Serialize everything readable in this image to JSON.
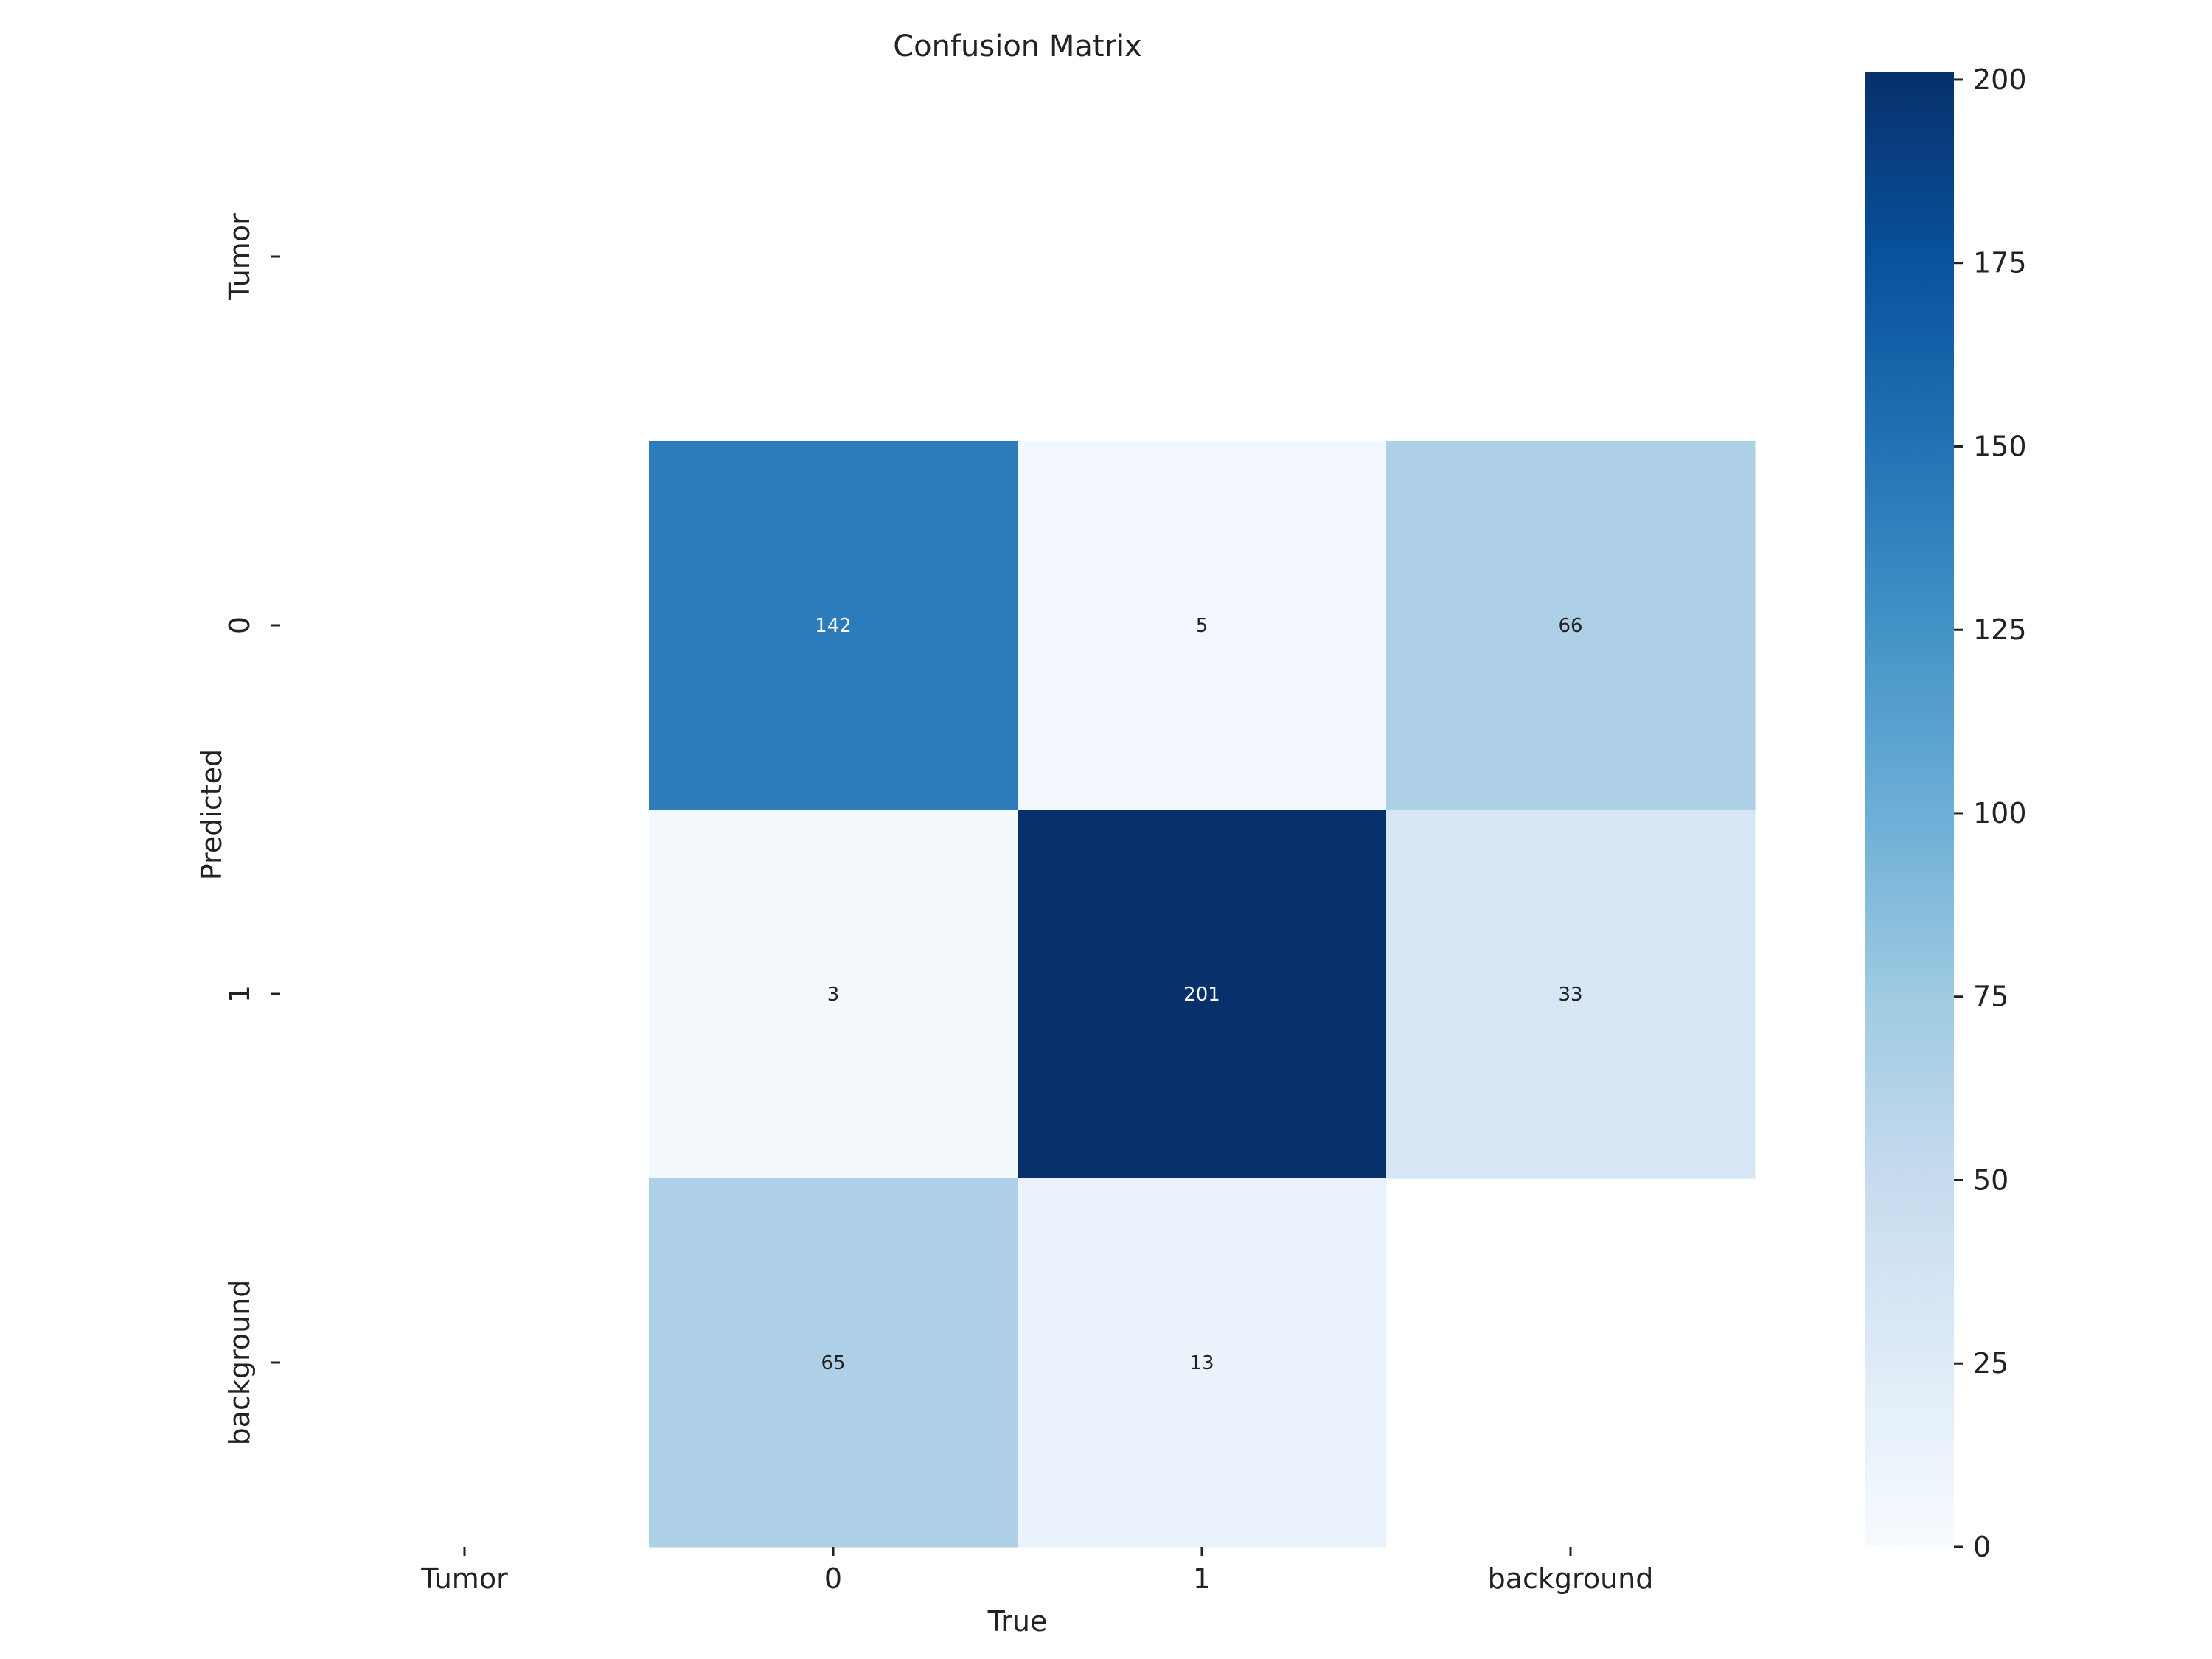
{
  "chart_data": {
    "type": "heatmap",
    "title": "Confusion Matrix",
    "xlabel": "True",
    "ylabel": "Predicted",
    "x_categories": [
      "Tumor",
      "0",
      "1",
      "background"
    ],
    "y_categories": [
      "Tumor",
      "0",
      "1",
      "background"
    ],
    "matrix": [
      [
        null,
        null,
        null,
        null
      ],
      [
        null,
        142,
        5,
        66
      ],
      [
        null,
        3,
        201,
        33
      ],
      [
        null,
        65,
        13,
        null
      ]
    ],
    "colorbar": {
      "range": [
        0,
        201
      ],
      "ticks": [
        "0",
        "25",
        "50",
        "75",
        "100",
        "125",
        "150",
        "175",
        "200"
      ],
      "tick_values": [
        0,
        25,
        50,
        75,
        100,
        125,
        150,
        175,
        200
      ]
    },
    "colormap": "Blues",
    "grid": false,
    "legend": "none"
  }
}
